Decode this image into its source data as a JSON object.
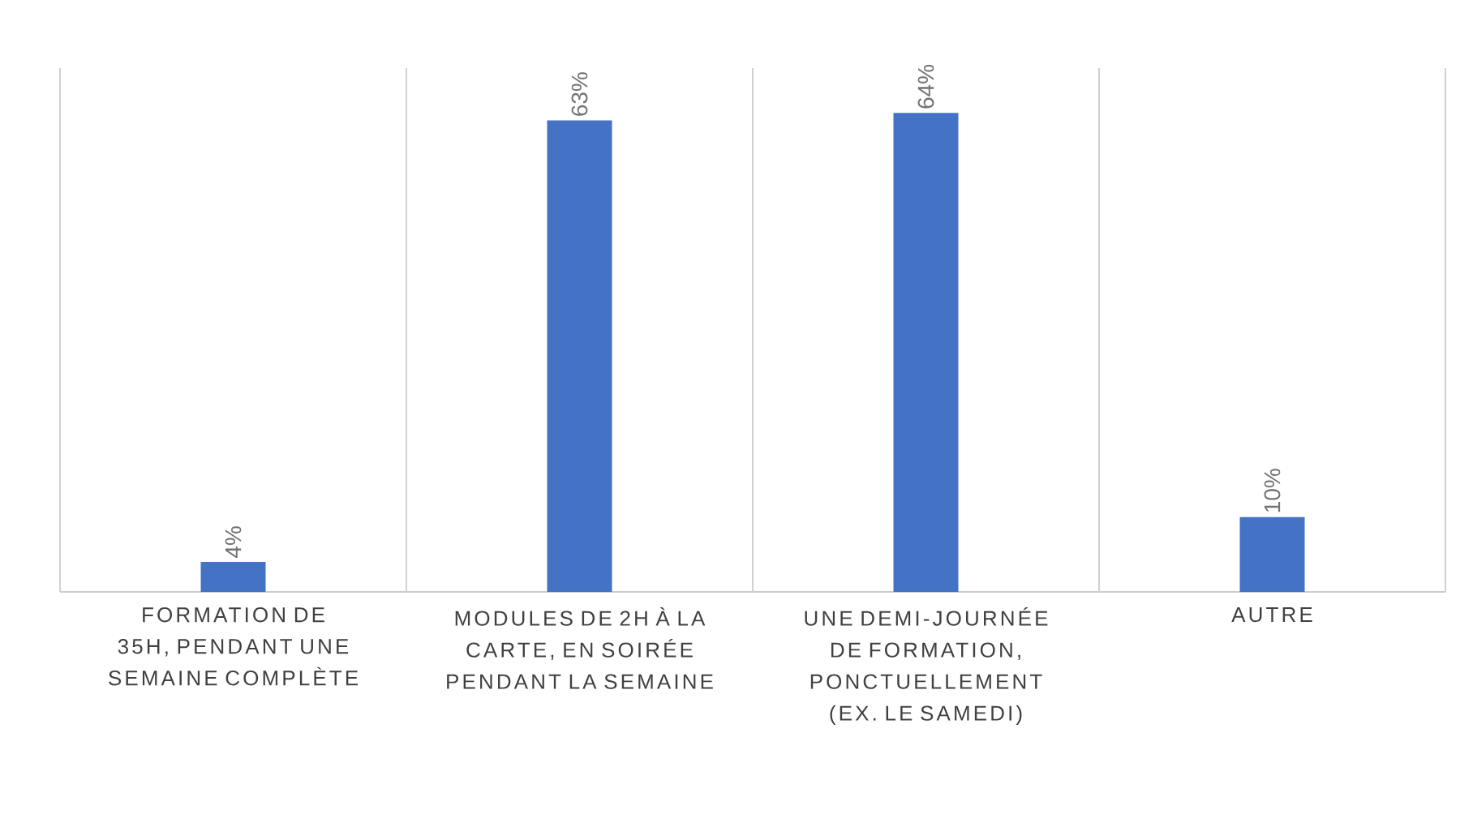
{
  "chart_data": {
    "type": "bar",
    "categories": [
      "FORMATION DE 35H, PENDANT UNE SEMAINE COMPLÈTE",
      "MODULES DE 2H À LA CARTE, EN SOIRÉE PENDANT LA SEMAINE",
      "UNE DEMI-JOURNÉE DE FORMATION, PONCTUELLEMENT (EX. LE SAMEDI)",
      "AUTRE"
    ],
    "values": [
      4,
      63,
      64,
      10
    ],
    "value_labels": [
      "4%",
      "63%",
      "64%",
      "10%"
    ],
    "color": "#4472c4",
    "ylim": [
      0,
      70
    ],
    "grid": "x",
    "tick_labels": "x"
  }
}
